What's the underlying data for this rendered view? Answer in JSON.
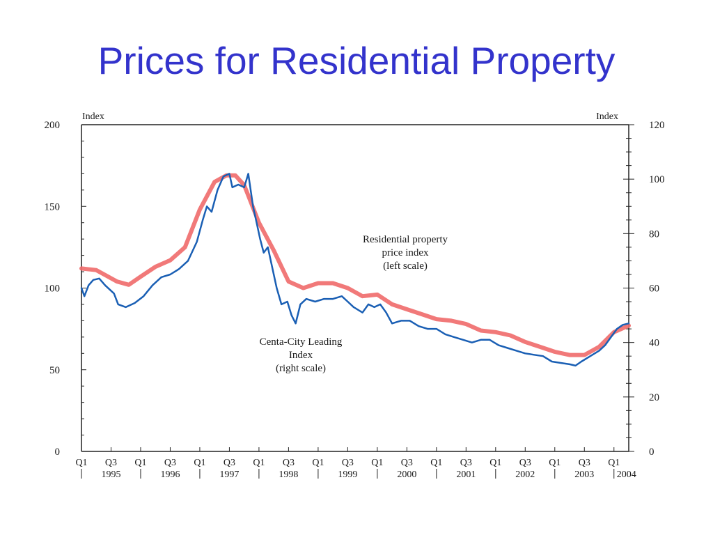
{
  "slide": {
    "title": "Prices for Residential Property"
  },
  "colors": {
    "title": "#3333cc",
    "left_series": "#ef6a6a",
    "right_series": "#1a5fb4",
    "axis": "#222222"
  },
  "chart_data": {
    "type": "line",
    "left_axis": {
      "label": "Index",
      "ylim": [
        0,
        200
      ],
      "ticks": [
        0,
        50,
        100,
        150,
        200
      ]
    },
    "right_axis": {
      "label": "Index",
      "ylim": [
        0,
        120
      ],
      "ticks": [
        0,
        20,
        40,
        60,
        80,
        100,
        120
      ]
    },
    "x_range": [
      1995.0,
      2004.25
    ],
    "x_tick_labels": [
      {
        "quarter": "Q1",
        "year": ""
      },
      {
        "quarter": "Q3",
        "year": "1995"
      },
      {
        "quarter": "Q1",
        "year": ""
      },
      {
        "quarter": "Q3",
        "year": "1996"
      },
      {
        "quarter": "Q1",
        "year": ""
      },
      {
        "quarter": "Q3",
        "year": "1997"
      },
      {
        "quarter": "Q1",
        "year": ""
      },
      {
        "quarter": "Q3",
        "year": "1998"
      },
      {
        "quarter": "Q1",
        "year": ""
      },
      {
        "quarter": "Q3",
        "year": "1999"
      },
      {
        "quarter": "Q1",
        "year": ""
      },
      {
        "quarter": "Q3",
        "year": "2000"
      },
      {
        "quarter": "Q1",
        "year": ""
      },
      {
        "quarter": "Q3",
        "year": "2001"
      },
      {
        "quarter": "Q1",
        "year": ""
      },
      {
        "quarter": "Q3",
        "year": "2002"
      },
      {
        "quarter": "Q1",
        "year": ""
      },
      {
        "quarter": "Q3",
        "year": "2003"
      },
      {
        "quarter": "Q1",
        "year": "2004"
      }
    ],
    "series": [
      {
        "name": "Residential property price index",
        "axis": "left",
        "points": [
          [
            1995.0,
            112
          ],
          [
            1995.25,
            111
          ],
          [
            1995.4,
            108
          ],
          [
            1995.6,
            104
          ],
          [
            1995.8,
            102
          ],
          [
            1996.0,
            107
          ],
          [
            1996.25,
            113
          ],
          [
            1996.5,
            117
          ],
          [
            1996.75,
            125
          ],
          [
            1997.0,
            148
          ],
          [
            1997.25,
            165
          ],
          [
            1997.45,
            169
          ],
          [
            1997.6,
            169
          ],
          [
            1997.75,
            163
          ],
          [
            1998.0,
            140
          ],
          [
            1998.25,
            123
          ],
          [
            1998.5,
            104
          ],
          [
            1998.75,
            100
          ],
          [
            1999.0,
            103
          ],
          [
            1999.25,
            103
          ],
          [
            1999.5,
            100
          ],
          [
            1999.75,
            95
          ],
          [
            2000.0,
            96
          ],
          [
            2000.25,
            90
          ],
          [
            2000.5,
            87
          ],
          [
            2000.75,
            84
          ],
          [
            2001.0,
            81
          ],
          [
            2001.25,
            80
          ],
          [
            2001.5,
            78
          ],
          [
            2001.75,
            74
          ],
          [
            2002.0,
            73
          ],
          [
            2002.25,
            71
          ],
          [
            2002.5,
            67
          ],
          [
            2002.75,
            64
          ],
          [
            2003.0,
            61
          ],
          [
            2003.25,
            59
          ],
          [
            2003.5,
            59
          ],
          [
            2003.75,
            64
          ],
          [
            2004.0,
            73
          ],
          [
            2004.25,
            77
          ]
        ]
      },
      {
        "name": "Centa-City Leading Index",
        "axis": "right",
        "points": [
          [
            1995.0,
            60
          ],
          [
            1995.05,
            57
          ],
          [
            1995.12,
            61
          ],
          [
            1995.2,
            63
          ],
          [
            1995.3,
            63.5
          ],
          [
            1995.4,
            61
          ],
          [
            1995.55,
            58
          ],
          [
            1995.62,
            54
          ],
          [
            1995.75,
            53
          ],
          [
            1995.9,
            54.5
          ],
          [
            1996.05,
            57
          ],
          [
            1996.2,
            61
          ],
          [
            1996.35,
            64
          ],
          [
            1996.5,
            65
          ],
          [
            1996.65,
            67
          ],
          [
            1996.8,
            70
          ],
          [
            1996.95,
            77
          ],
          [
            1997.05,
            85
          ],
          [
            1997.12,
            90
          ],
          [
            1997.2,
            88
          ],
          [
            1997.3,
            96
          ],
          [
            1997.4,
            101
          ],
          [
            1997.5,
            102
          ],
          [
            1997.55,
            97
          ],
          [
            1997.65,
            98
          ],
          [
            1997.75,
            97
          ],
          [
            1997.82,
            102
          ],
          [
            1997.9,
            90
          ],
          [
            1997.97,
            83
          ],
          [
            1998.02,
            78
          ],
          [
            1998.08,
            73
          ],
          [
            1998.15,
            75
          ],
          [
            1998.22,
            68
          ],
          [
            1998.3,
            60
          ],
          [
            1998.38,
            54
          ],
          [
            1998.48,
            55
          ],
          [
            1998.55,
            50
          ],
          [
            1998.62,
            47
          ],
          [
            1998.7,
            54
          ],
          [
            1998.8,
            56
          ],
          [
            1998.95,
            55
          ],
          [
            1999.1,
            56
          ],
          [
            1999.25,
            56
          ],
          [
            1999.4,
            57
          ],
          [
            1999.5,
            55
          ],
          [
            1999.6,
            53
          ],
          [
            1999.75,
            51
          ],
          [
            1999.85,
            54
          ],
          [
            1999.95,
            53
          ],
          [
            2000.05,
            54
          ],
          [
            2000.15,
            51
          ],
          [
            2000.25,
            47
          ],
          [
            2000.4,
            48
          ],
          [
            2000.55,
            48
          ],
          [
            2000.7,
            46
          ],
          [
            2000.85,
            45
          ],
          [
            2001.0,
            45
          ],
          [
            2001.15,
            43
          ],
          [
            2001.3,
            42
          ],
          [
            2001.45,
            41
          ],
          [
            2001.6,
            40
          ],
          [
            2001.75,
            41
          ],
          [
            2001.9,
            41
          ],
          [
            2002.05,
            39
          ],
          [
            2002.2,
            38
          ],
          [
            2002.35,
            37
          ],
          [
            2002.5,
            36
          ],
          [
            2002.65,
            35.5
          ],
          [
            2002.8,
            35
          ],
          [
            2002.95,
            33
          ],
          [
            2003.1,
            32.5
          ],
          [
            2003.25,
            32
          ],
          [
            2003.35,
            31.5
          ],
          [
            2003.45,
            33
          ],
          [
            2003.6,
            35
          ],
          [
            2003.75,
            37
          ],
          [
            2003.85,
            39
          ],
          [
            2003.95,
            42
          ],
          [
            2004.05,
            45
          ],
          [
            2004.15,
            46.5
          ],
          [
            2004.25,
            47
          ]
        ]
      }
    ],
    "annotations": [
      {
        "target": "Residential property price index",
        "lines": [
          "Residential property",
          "price index",
          "(left scale)"
        ]
      },
      {
        "target": "Centa-City Leading Index",
        "lines": [
          "Centa-City Leading",
          "Index",
          "(right scale)"
        ]
      }
    ]
  }
}
